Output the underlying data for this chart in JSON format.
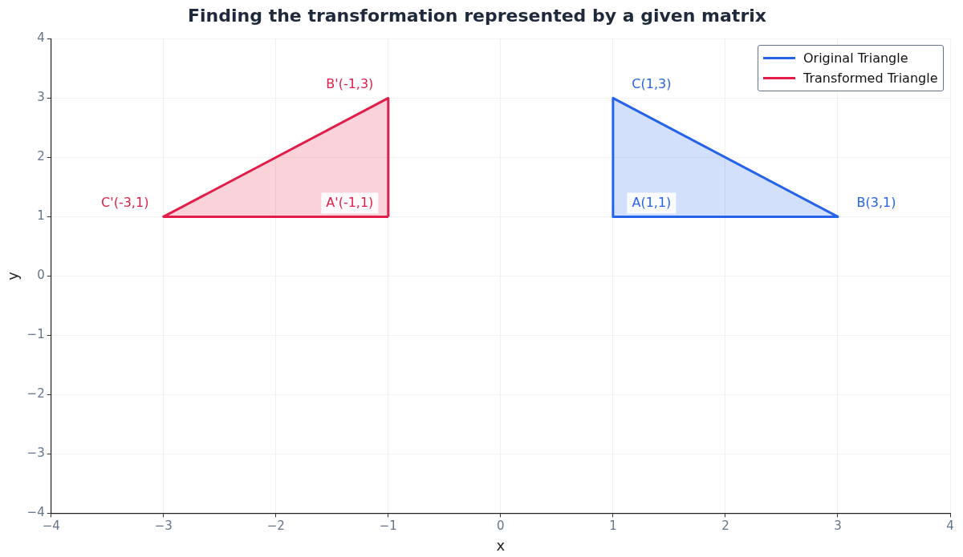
{
  "chart_data": {
    "type": "area",
    "title": "Finding the transformation represented by a given matrix",
    "xlabel": "x",
    "ylabel": "y",
    "series": [
      {
        "name": "Original Triangle",
        "color": "#2563eb",
        "x": [
          1,
          3,
          1,
          1
        ],
        "values": [
          1,
          1,
          3,
          1
        ]
      },
      {
        "name": "Transformed Triangle",
        "color": "#e11d48",
        "x": [
          -1,
          -1,
          -3,
          -1
        ],
        "values": [
          1,
          3,
          1,
          1
        ]
      }
    ],
    "annotations": [
      {
        "text": "A(1,1)",
        "x": 1,
        "y": 1
      },
      {
        "text": "B(3,1)",
        "x": 3,
        "y": 1
      },
      {
        "text": "C(1,3)",
        "x": 1,
        "y": 3
      },
      {
        "text": "A'(-1,1)",
        "x": -1,
        "y": 1
      },
      {
        "text": "B'(-1,3)",
        "x": -1,
        "y": 3
      },
      {
        "text": "C'(-3,1)",
        "x": -3,
        "y": 1
      }
    ],
    "xlim": [
      -4,
      4
    ],
    "ylim": [
      -4,
      4
    ],
    "xticks": [
      -4,
      -3,
      -2,
      -1,
      0,
      1,
      2,
      3,
      4
    ],
    "yticks": [
      -4,
      -3,
      -2,
      -1,
      0,
      1,
      2,
      3,
      4
    ],
    "grid": true,
    "legend": "top right",
    "marker": "none",
    "line_style": "solid"
  }
}
